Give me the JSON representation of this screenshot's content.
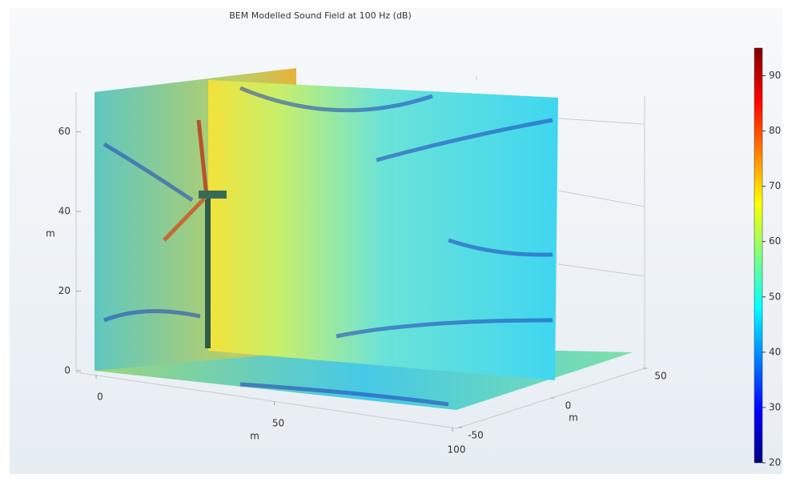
{
  "chart_data": {
    "type": "surface3d",
    "title": "BEM Modelled Sound Field at 100 Hz (dB)",
    "z_axis": {
      "label": "m",
      "lim": [
        0,
        70
      ],
      "ticks": [
        0,
        20,
        40,
        60
      ]
    },
    "x_axis": {
      "label": "m",
      "lim": [
        0,
        100
      ],
      "ticks": [
        0,
        50,
        100
      ]
    },
    "y_axis": {
      "label": "m",
      "lim": [
        -50,
        50
      ],
      "ticks": [
        -50,
        0,
        50
      ]
    },
    "colorbar": {
      "lim": [
        20,
        95
      ],
      "ticks": [
        20,
        30,
        40,
        50,
        60,
        70,
        80,
        90
      ],
      "colors": [
        "#00007f",
        "#0000ff",
        "#0080ff",
        "#00ffff",
        "#80ff80",
        "#ffff00",
        "#ff8000",
        "#ff0000",
        "#7f0000"
      ]
    }
  }
}
